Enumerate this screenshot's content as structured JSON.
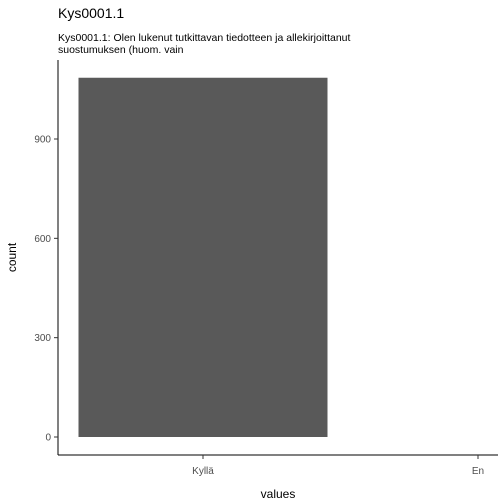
{
  "chart_data": {
    "type": "bar",
    "title": "Kys0001.1",
    "subtitle_lines": [
      "Kys0001.1: Olen lukenut tutkittavan tiedotteen ja allekirjoittanut",
      "suostumuksen (huom. vain"
    ],
    "categories": [
      "Kyllä",
      "En"
    ],
    "values": [
      1085,
      0
    ],
    "xlabel": "values",
    "ylabel": "count",
    "ylim": [
      0,
      1140
    ],
    "yticks": [
      0,
      300,
      600,
      900
    ],
    "bar_color": "#595959",
    "grid": false
  }
}
